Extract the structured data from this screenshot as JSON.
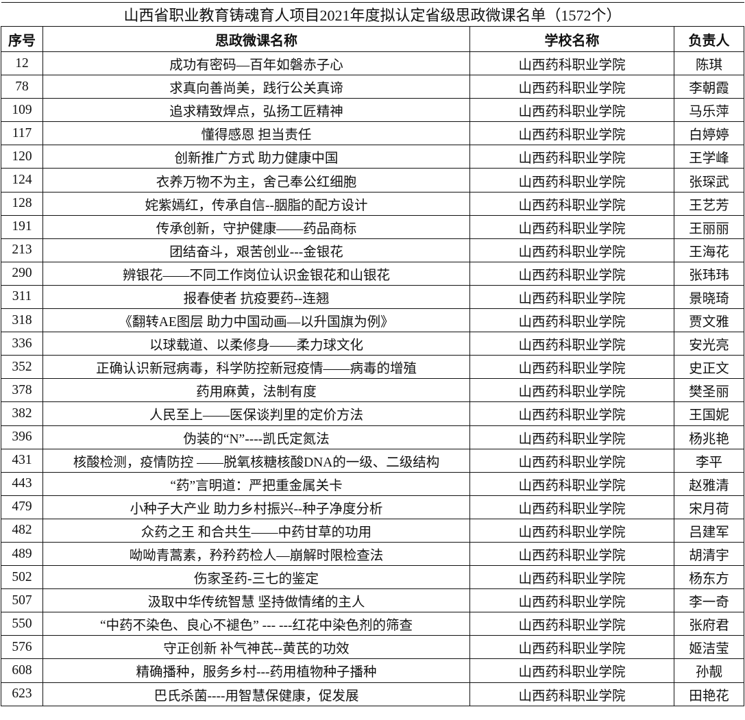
{
  "title": "山西省职业教育铸魂育人项目2021年度拟认定省级思政微课名单（1572个）",
  "headers": [
    "序号",
    "思政微课名称",
    "学校名称",
    "负责人"
  ],
  "rows": [
    [
      "12",
      "成功有密码—百年如磐赤子心",
      "山西药科职业学院",
      "陈琪"
    ],
    [
      "78",
      "求真向善尚美，践行公关真谛",
      "山西药科职业学院",
      "李朝霞"
    ],
    [
      "109",
      "追求精致焊点，弘扬工匠精神",
      "山西药科职业学院",
      "马乐萍"
    ],
    [
      "117",
      "懂得感恩  担当责任",
      "山西药科职业学院",
      "白婷婷"
    ],
    [
      "120",
      "创新推广方式   助力健康中国",
      "山西药科职业学院",
      "王学峰"
    ],
    [
      "124",
      "衣养万物不为主，舍己奉公红细胞",
      "山西药科职业学院",
      "张琛武"
    ],
    [
      "128",
      "姹紫嫣红，传承自信--胭脂的配方设计",
      "山西药科职业学院",
      "王艺芳"
    ],
    [
      "191",
      "传承创新，守护健康——药品商标",
      "山西药科职业学院",
      "王丽丽"
    ],
    [
      "213",
      "团结奋斗，艰苦创业---金银花",
      "山西药科职业学院",
      "王海花"
    ],
    [
      "290",
      "辨银花——不同工作岗位认识金银花和山银花",
      "山西药科职业学院",
      "张玮玮"
    ],
    [
      "311",
      "报春使者  抗疫要药--连翘",
      "山西药科职业学院",
      "景晓琦"
    ],
    [
      "318",
      "《翻转AE图层  助力中国动画—以升国旗为例》",
      "山西药科职业学院",
      "贾文雅"
    ],
    [
      "336",
      "以球载道、以柔修身——柔力球文化",
      "山西药科职业学院",
      "安光亮"
    ],
    [
      "352",
      "正确认识新冠病毒，科学防控新冠疫情——病毒的增殖",
      "山西药科职业学院",
      "史正文"
    ],
    [
      "378",
      "药用麻黄，法制有度",
      "山西药科职业学院",
      "樊圣丽"
    ],
    [
      "382",
      "人民至上——医保谈判里的定价方法",
      "山西药科职业学院",
      "王国妮"
    ],
    [
      "396",
      "伪装的“N”----凯氏定氮法",
      "山西药科职业学院",
      "杨兆艳"
    ],
    [
      "431",
      "核酸检测，疫情防控  ——脱氧核糖核酸DNA的一级、二级结构",
      "山西药科职业学院",
      "李平"
    ],
    [
      "443",
      "“药”言明道：严把重金属关卡",
      "山西药科职业学院",
      "赵雅清"
    ],
    [
      "479",
      "小种子大产业 助力乡村振兴--种子净度分析",
      "山西药科职业学院",
      "宋月荷"
    ],
    [
      "482",
      "众药之王  和合共生——中药甘草的功用",
      "山西药科职业学院",
      "吕建军"
    ],
    [
      "489",
      "呦呦青蒿素，矜矜药检人—崩解时限检查法",
      "山西药科职业学院",
      "胡清宇"
    ],
    [
      "502",
      "伤家圣药-三七的鉴定",
      "山西药科职业学院",
      "杨东方"
    ],
    [
      "507",
      "汲取中华传统智慧  坚持做情绪的主人",
      "山西药科职业学院",
      "李一奇"
    ],
    [
      "550",
      "“中药不染色、良心不褪色”  ---  ---红花中染色剂的筛查",
      "山西药科职业学院",
      "张府君"
    ],
    [
      "576",
      "守正创新  补气神芪--黄芪的功效",
      "山西药科职业学院",
      "姬洁莹"
    ],
    [
      "608",
      "精确播种，服务乡村---药用植物种子播种",
      "山西药科职业学院",
      "孙靓"
    ],
    [
      "623",
      "巴氏杀菌----用智慧保健康，促发展",
      "山西药科职业学院",
      "田艳花"
    ]
  ]
}
